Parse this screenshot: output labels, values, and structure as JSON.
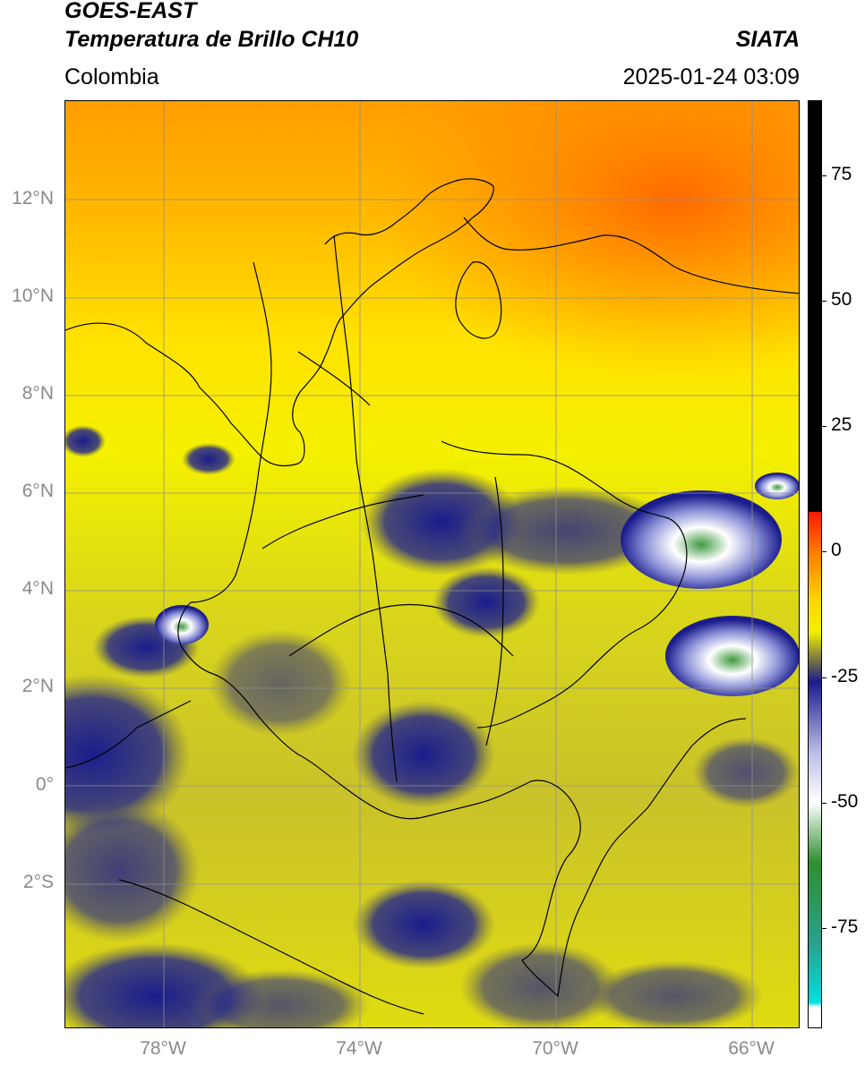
{
  "header": {
    "satellite": "GOES-EAST",
    "product": "Temperatura de Brillo CH10",
    "brand": "SIATA",
    "region": "Colombia",
    "datetime": "2025-01-24 03:09"
  },
  "map": {
    "latitude_labels": [
      "12°N",
      "10°N",
      "8°N",
      "6°N",
      "4°N",
      "2°N",
      "0°",
      "2°S"
    ],
    "longitude_labels": [
      "78°W",
      "74°W",
      "70°W",
      "66°W"
    ],
    "extent": {
      "lon_min": -80,
      "lon_max": -65,
      "lat_min": -5,
      "lat_max": 14
    }
  },
  "colorbar": {
    "ticks": [
      "75",
      "50",
      "25",
      "0",
      "-25",
      "-50",
      "-75"
    ],
    "range": [
      -95,
      90
    ],
    "stops": [
      {
        "value": 90,
        "color": "#000000"
      },
      {
        "value": 8,
        "color": "#000000"
      },
      {
        "value": 7.9,
        "color": "#ff1a00"
      },
      {
        "value": 0,
        "color": "#ff7a00"
      },
      {
        "value": -10,
        "color": "#ffd800"
      },
      {
        "value": -16,
        "color": "#f2f000"
      },
      {
        "value": -22,
        "color": "#6d6d4a"
      },
      {
        "value": -26,
        "color": "#1b1c8c"
      },
      {
        "value": -40,
        "color": "#b9bde6"
      },
      {
        "value": -50,
        "color": "#ffffff"
      },
      {
        "value": -62,
        "color": "#2f8f2f"
      },
      {
        "value": -78,
        "color": "#2aa08c"
      },
      {
        "value": -90,
        "color": "#00e0e0"
      },
      {
        "value": -91,
        "color": "#ffffff"
      }
    ]
  }
}
